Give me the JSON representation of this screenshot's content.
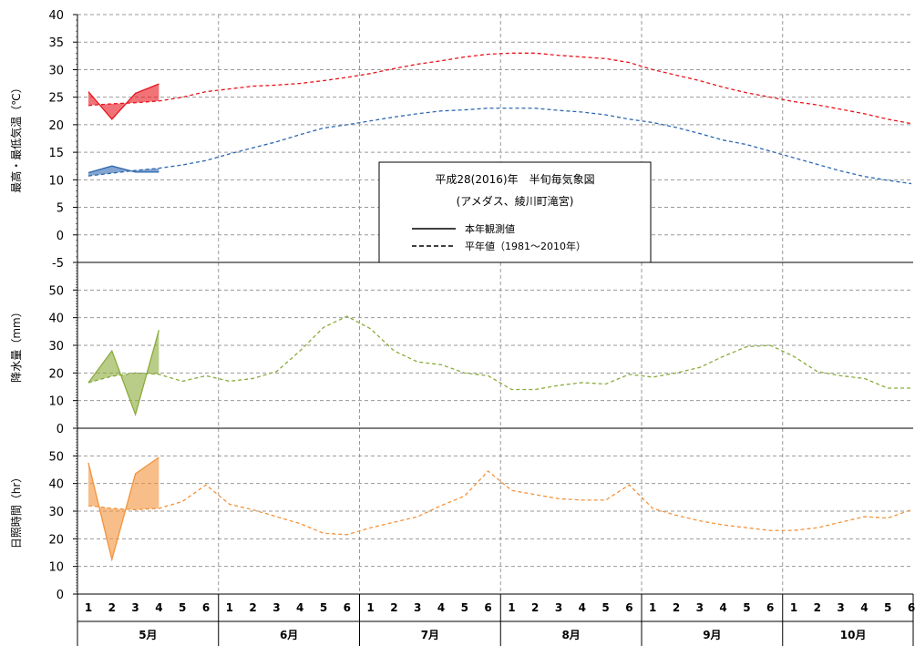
{
  "chart_data": {
    "type": "line",
    "title": "平成28(2016)年　半旬毎気象図",
    "subtitle": "(アメダス、綾川町滝宮)",
    "legend": [
      {
        "label": "本年観測値",
        "style": "solid"
      },
      {
        "label": "平年値（1981～2010年）",
        "style": "dashed"
      }
    ],
    "legend_position": "center",
    "months": [
      "5月",
      "6月",
      "7月",
      "8月",
      "9月",
      "10月"
    ],
    "pentads": [
      "1",
      "2",
      "3",
      "4",
      "5",
      "6"
    ],
    "grid": true,
    "panels": [
      {
        "id": "temperature",
        "ylabel": "最高・最低気温（℃）",
        "ylim": [
          -5,
          40
        ],
        "yticks": [
          -5,
          0,
          5,
          10,
          15,
          20,
          25,
          30,
          35,
          40
        ],
        "series": [
          {
            "role": "max_normal",
            "style": "dashed",
            "color": "#e8141c",
            "values": [
              23.5,
              23.8,
              24.0,
              24.3,
              25.0,
              26.0,
              26.5,
              27.0,
              27.2,
              27.5,
              28.0,
              28.6,
              29.3,
              30.2,
              31.0,
              31.6,
              32.3,
              32.8,
              33.0,
              33.0,
              32.6,
              32.3,
              32.0,
              31.3,
              30.0,
              29.0,
              28.0,
              26.8,
              25.8,
              25.0,
              24.2,
              23.6,
              22.8,
              22.0,
              21.0,
              20.2
            ]
          },
          {
            "role": "max_observed",
            "style": "solid",
            "color": "#e8141c",
            "values": [
              26.0,
              21.0,
              25.7,
              27.4
            ]
          },
          {
            "role": "min_normal",
            "style": "dashed",
            "color": "#2e68b0",
            "values": [
              10.7,
              11.2,
              11.7,
              12.1,
              12.7,
              13.5,
              14.7,
              15.8,
              16.9,
              18.2,
              19.4,
              20.0,
              20.7,
              21.4,
              22.0,
              22.5,
              22.7,
              23.0,
              23.0,
              23.0,
              22.6,
              22.3,
              21.8,
              21.0,
              20.4,
              19.5,
              18.4,
              17.2,
              16.4,
              15.2,
              14.0,
              12.8,
              11.6,
              10.6,
              9.9,
              9.3
            ]
          },
          {
            "role": "min_observed",
            "style": "solid",
            "color": "#2e68b0",
            "values": [
              11.3,
              12.5,
              11.4,
              11.4
            ]
          }
        ]
      },
      {
        "id": "precipitation",
        "ylabel": "降水量（mm）",
        "ylim": [
          0,
          60
        ],
        "yticks": [
          0,
          10,
          20,
          30,
          40,
          50
        ],
        "series": [
          {
            "role": "normal",
            "style": "dashed",
            "color": "#8aab3b",
            "values": [
              16.5,
              18.8,
              20.0,
              19.5,
              17.0,
              19.0,
              17.0,
              18.0,
              20.5,
              28.0,
              36.5,
              40.5,
              36.0,
              28.0,
              24.0,
              23.0,
              20.0,
              19.0,
              14.0,
              14.0,
              15.5,
              16.5,
              16.0,
              19.5,
              18.5,
              20.0,
              22.0,
              26.0,
              29.5,
              30.0,
              26.0,
              20.5,
              19.0,
              18.0,
              14.5,
              14.5
            ]
          },
          {
            "role": "observed",
            "style": "solid",
            "color": "#8aab3b",
            "values": [
              16.5,
              28.0,
              5.0,
              35.5
            ]
          }
        ]
      },
      {
        "id": "sunshine",
        "ylabel": "日照時間（hr）",
        "ylim": [
          0,
          60
        ],
        "yticks": [
          0,
          10,
          20,
          30,
          40,
          50
        ],
        "series": [
          {
            "role": "normal",
            "style": "dashed",
            "color": "#f2933c",
            "values": [
              32.0,
              31.0,
              30.5,
              31.0,
              33.5,
              39.5,
              32.5,
              30.5,
              28.0,
              25.5,
              22.0,
              21.5,
              24.0,
              26.0,
              28.0,
              32.0,
              35.5,
              44.5,
              37.5,
              36.0,
              34.5,
              34.0,
              34.0,
              39.5,
              31.0,
              28.5,
              26.5,
              25.0,
              24.0,
              23.0,
              23.0,
              24.0,
              26.0,
              28.0,
              27.5,
              30.5
            ]
          },
          {
            "role": "observed",
            "style": "solid",
            "color": "#f2933c",
            "values": [
              47.5,
              12.5,
              43.5,
              49.5
            ]
          }
        ]
      }
    ]
  }
}
